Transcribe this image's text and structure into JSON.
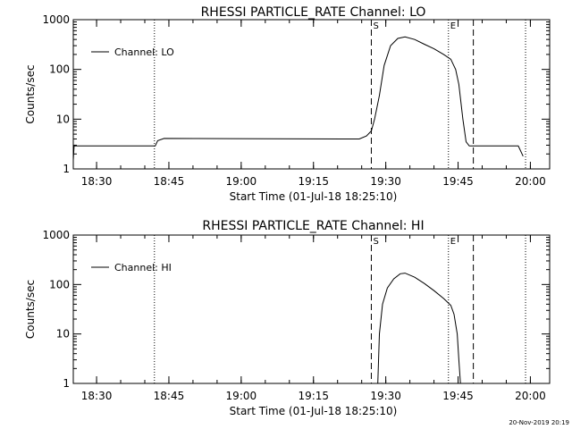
{
  "footer": {
    "timestamp": "20-Nov-2019 20:19"
  },
  "chart_data": [
    {
      "type": "line",
      "title": "RHESSI PARTICLE_RATE Channel: LO",
      "xlabel": "Start Time (01-Jul-18 18:25:10)",
      "ylabel": "Counts/sec",
      "y_scale": "log",
      "xlim": [
        "18:25:10",
        "20:04:00"
      ],
      "ylim": [
        1,
        1000
      ],
      "x_ticks": [
        "18:30",
        "18:45",
        "19:00",
        "19:15",
        "19:30",
        "19:45",
        "20:00"
      ],
      "y_ticks": [
        "1",
        "10",
        "100",
        "1000"
      ],
      "legend": {
        "placement": "top-left",
        "entries": [
          "Channel: LO"
        ]
      },
      "markers": [
        {
          "time": "18:42:00",
          "style": "dotted",
          "label": ""
        },
        {
          "time": "19:27:00",
          "style": "dashed",
          "label": "S"
        },
        {
          "time": "19:43:00",
          "style": "dotted",
          "label": "E"
        },
        {
          "time": "19:48:10",
          "style": "dashed",
          "label": ""
        },
        {
          "time": "19:59:00",
          "style": "dotted",
          "label": ""
        }
      ],
      "series": [
        {
          "name": "Channel: LO",
          "points": [
            [
              "18:25:10",
              1.5
            ],
            [
              "18:25:20",
              2.9
            ],
            [
              "18:29:30",
              2.9
            ],
            [
              "18:31:00",
              2.9
            ],
            [
              "18:42:10",
              2.9
            ],
            [
              "18:42:40",
              3.7
            ],
            [
              "18:44:00",
              4.1
            ],
            [
              "19:24:30",
              4.0
            ],
            [
              "19:26:00",
              4.6
            ],
            [
              "19:27:00",
              5.8
            ],
            [
              "19:27:40",
              10.0
            ],
            [
              "19:28:40",
              30.0
            ],
            [
              "19:29:40",
              120.0
            ],
            [
              "19:31:00",
              300.0
            ],
            [
              "19:32:30",
              420.0
            ],
            [
              "19:34:00",
              450.0
            ],
            [
              "19:36:00",
              400.0
            ],
            [
              "19:38:00",
              320.0
            ],
            [
              "19:40:00",
              260.0
            ],
            [
              "19:42:00",
              200.0
            ],
            [
              "19:43:30",
              160.0
            ],
            [
              "19:44:30",
              100.0
            ],
            [
              "19:45:10",
              50.0
            ],
            [
              "19:46:00",
              10.0
            ],
            [
              "19:46:40",
              3.5
            ],
            [
              "19:47:20",
              2.9
            ],
            [
              "19:57:30",
              2.9
            ],
            [
              "19:58:30",
              1.8
            ]
          ]
        }
      ]
    },
    {
      "type": "line",
      "title": "RHESSI PARTICLE_RATE Channel: HI",
      "xlabel": "Start Time (01-Jul-18 18:25:10)",
      "ylabel": "Counts/sec",
      "y_scale": "log",
      "xlim": [
        "18:25:10",
        "20:04:00"
      ],
      "ylim": [
        1,
        1000
      ],
      "x_ticks": [
        "18:30",
        "18:45",
        "19:00",
        "19:15",
        "19:30",
        "19:45",
        "20:00"
      ],
      "y_ticks": [
        "1",
        "10",
        "100",
        "1000"
      ],
      "legend": {
        "placement": "top-left",
        "entries": [
          "Channel: HI"
        ]
      },
      "markers": [
        {
          "time": "18:42:00",
          "style": "dotted",
          "label": ""
        },
        {
          "time": "19:27:00",
          "style": "dashed",
          "label": "S"
        },
        {
          "time": "19:43:00",
          "style": "dotted",
          "label": "E"
        },
        {
          "time": "19:48:10",
          "style": "dashed",
          "label": ""
        },
        {
          "time": "19:59:00",
          "style": "dotted",
          "label": ""
        }
      ],
      "series": [
        {
          "name": "Channel: HI",
          "points": [
            [
              "19:28:20",
              1.0
            ],
            [
              "19:28:40",
              10.0
            ],
            [
              "19:29:20",
              40.0
            ],
            [
              "19:30:20",
              85.0
            ],
            [
              "19:31:40",
              130.0
            ],
            [
              "19:33:00",
              165.0
            ],
            [
              "19:34:00",
              170.0
            ],
            [
              "19:36:00",
              140.0
            ],
            [
              "19:38:00",
              105.0
            ],
            [
              "19:40:00",
              75.0
            ],
            [
              "19:42:00",
              52.0
            ],
            [
              "19:43:30",
              38.0
            ],
            [
              "19:44:10",
              25.0
            ],
            [
              "19:44:50",
              10.0
            ],
            [
              "19:45:10",
              3.0
            ],
            [
              "19:45:30",
              1.0
            ]
          ]
        }
      ]
    }
  ]
}
